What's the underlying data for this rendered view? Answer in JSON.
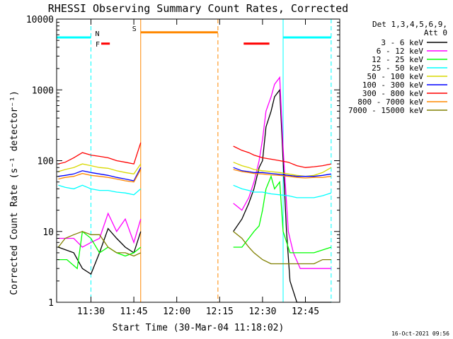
{
  "chart_data": {
    "type": "line",
    "title": "RHESSI Observing Summary Count Rates, Corrected",
    "xlabel": "Start Time (30-Mar-04 11:18:02)",
    "ylabel": "Corrected Count Rate (s⁻¹ detector⁻¹)",
    "ylog": true,
    "ylim": [
      1,
      10000
    ],
    "xlim_min": [
      11.3,
      12.95
    ],
    "x_ticks": [
      {
        "value": 11.5,
        "label": "11:30"
      },
      {
        "value": 11.75,
        "label": "11:45"
      },
      {
        "value": 12.0,
        "label": "12:00"
      },
      {
        "value": 12.25,
        "label": "12:15"
      },
      {
        "value": 12.5,
        "label": "12:30"
      },
      {
        "value": 12.75,
        "label": "12:45"
      }
    ],
    "y_ticks": [
      {
        "value": 1,
        "label": "1"
      },
      {
        "value": 10,
        "label": "10"
      },
      {
        "value": 100,
        "label": "100"
      },
      {
        "value": 1000,
        "label": "1000"
      },
      {
        "value": 10000,
        "label": "10000"
      }
    ],
    "legend": {
      "header": [
        "Det 1,3,4,5,6,9,",
        "Att 0"
      ],
      "placement": "right",
      "entries": [
        {
          "label": "3 - 6 keV",
          "color": "#000000"
        },
        {
          "label": "6 - 12 keV",
          "color": "#ff00ff"
        },
        {
          "label": "12 - 25 keV",
          "color": "#00ff00"
        },
        {
          "label": "25 - 50 keV",
          "color": "#00ffff"
        },
        {
          "label": "50 - 100 keV",
          "color": "#d8d800"
        },
        {
          "label": "100 - 300 keV",
          "color": "#0000ff"
        },
        {
          "label": "300 - 800 keV",
          "color": "#ff0000"
        },
        {
          "label": "800 - 7000 keV",
          "color": "#ff8800"
        },
        {
          "label": "7000 - 15000 keV",
          "color": "#808000"
        }
      ]
    },
    "series": [
      {
        "name": "3 - 6 keV",
        "color": "#000000",
        "segments": [
          [
            [
              11.31,
              6
            ],
            [
              11.4,
              5
            ],
            [
              11.45,
              3
            ],
            [
              11.5,
              2.5
            ],
            [
              11.55,
              5
            ],
            [
              11.6,
              11
            ],
            [
              11.65,
              8
            ],
            [
              11.7,
              6
            ],
            [
              11.75,
              5
            ],
            [
              11.79,
              10
            ]
          ],
          [
            [
              12.33,
              10
            ],
            [
              12.38,
              15
            ],
            [
              12.42,
              25
            ],
            [
              12.45,
              40
            ],
            [
              12.48,
              80
            ],
            [
              12.5,
              100
            ],
            [
              12.52,
              300
            ],
            [
              12.55,
              500
            ],
            [
              12.57,
              800
            ],
            [
              12.6,
              1000
            ],
            [
              12.62,
              100
            ],
            [
              12.64,
              10
            ],
            [
              12.66,
              2
            ],
            [
              12.7,
              1
            ],
            [
              12.9,
              1
            ]
          ]
        ]
      },
      {
        "name": "6 - 12 keV",
        "color": "#ff00ff",
        "segments": [
          [
            [
              11.31,
              8
            ],
            [
              11.4,
              8
            ],
            [
              11.45,
              6
            ],
            [
              11.5,
              7
            ],
            [
              11.55,
              8
            ],
            [
              11.6,
              18
            ],
            [
              11.65,
              10
            ],
            [
              11.7,
              15
            ],
            [
              11.75,
              7
            ],
            [
              11.79,
              15
            ]
          ],
          [
            [
              12.33,
              25
            ],
            [
              12.38,
              20
            ],
            [
              12.42,
              30
            ],
            [
              12.45,
              50
            ],
            [
              12.48,
              100
            ],
            [
              12.5,
              200
            ],
            [
              12.52,
              500
            ],
            [
              12.55,
              800
            ],
            [
              12.57,
              1200
            ],
            [
              12.6,
              1500
            ],
            [
              12.62,
              150
            ],
            [
              12.65,
              10
            ],
            [
              12.68,
              5
            ],
            [
              12.72,
              3
            ],
            [
              12.9,
              3
            ]
          ]
        ]
      },
      {
        "name": "12 - 25 keV",
        "color": "#00ff00",
        "segments": [
          [
            [
              11.31,
              4
            ],
            [
              11.36,
              4
            ],
            [
              11.42,
              3
            ],
            [
              11.45,
              10
            ],
            [
              11.5,
              8
            ],
            [
              11.55,
              5
            ],
            [
              11.6,
              6
            ],
            [
              11.65,
              5
            ],
            [
              11.7,
              4.5
            ],
            [
              11.75,
              5
            ],
            [
              11.79,
              6
            ]
          ],
          [
            [
              12.33,
              6
            ],
            [
              12.38,
              6
            ],
            [
              12.42,
              8
            ],
            [
              12.45,
              10
            ],
            [
              12.48,
              12
            ],
            [
              12.5,
              20
            ],
            [
              12.52,
              40
            ],
            [
              12.55,
              60
            ],
            [
              12.57,
              40
            ],
            [
              12.6,
              50
            ],
            [
              12.62,
              10
            ],
            [
              12.66,
              5
            ],
            [
              12.72,
              5
            ],
            [
              12.8,
              5
            ],
            [
              12.9,
              6
            ]
          ]
        ]
      },
      {
        "name": "25 - 50 keV",
        "color": "#00ffff",
        "segments": [
          [
            [
              11.31,
              45
            ],
            [
              11.35,
              42
            ],
            [
              11.4,
              40
            ],
            [
              11.45,
              45
            ],
            [
              11.5,
              40
            ],
            [
              11.55,
              38
            ],
            [
              11.6,
              38
            ],
            [
              11.65,
              36
            ],
            [
              11.7,
              35
            ],
            [
              11.75,
              33
            ],
            [
              11.79,
              40
            ]
          ],
          [
            [
              12.33,
              45
            ],
            [
              12.38,
              40
            ],
            [
              12.42,
              38
            ],
            [
              12.45,
              36
            ],
            [
              12.5,
              36
            ],
            [
              12.55,
              34
            ],
            [
              12.6,
              33
            ],
            [
              12.65,
              32
            ],
            [
              12.7,
              30
            ],
            [
              12.75,
              30
            ],
            [
              12.8,
              30
            ],
            [
              12.85,
              32
            ],
            [
              12.9,
              35
            ]
          ]
        ]
      },
      {
        "name": "50 - 100 keV",
        "color": "#d8d800",
        "segments": [
          [
            [
              11.31,
              70
            ],
            [
              11.35,
              75
            ],
            [
              11.4,
              80
            ],
            [
              11.45,
              90
            ],
            [
              11.5,
              85
            ],
            [
              11.55,
              80
            ],
            [
              11.6,
              78
            ],
            [
              11.65,
              72
            ],
            [
              11.7,
              68
            ],
            [
              11.75,
              65
            ],
            [
              11.79,
              90
            ]
          ],
          [
            [
              12.33,
              95
            ],
            [
              12.38,
              85
            ],
            [
              12.42,
              80
            ],
            [
              12.45,
              75
            ],
            [
              12.5,
              72
            ],
            [
              12.55,
              70
            ],
            [
              12.6,
              68
            ],
            [
              12.65,
              65
            ],
            [
              12.7,
              62
            ],
            [
              12.75,
              60
            ],
            [
              12.8,
              62
            ],
            [
              12.85,
              68
            ],
            [
              12.9,
              80
            ]
          ]
        ]
      },
      {
        "name": "100 - 300 keV",
        "color": "#0000ff",
        "segments": [
          [
            [
              11.31,
              60
            ],
            [
              11.35,
              62
            ],
            [
              11.4,
              65
            ],
            [
              11.45,
              72
            ],
            [
              11.5,
              68
            ],
            [
              11.55,
              65
            ],
            [
              11.6,
              62
            ],
            [
              11.65,
              58
            ],
            [
              11.7,
              55
            ],
            [
              11.75,
              52
            ],
            [
              11.79,
              80
            ]
          ],
          [
            [
              12.33,
              80
            ],
            [
              12.38,
              72
            ],
            [
              12.42,
              70
            ],
            [
              12.45,
              68
            ],
            [
              12.5,
              68
            ],
            [
              12.55,
              66
            ],
            [
              12.6,
              64
            ],
            [
              12.65,
              62
            ],
            [
              12.7,
              60
            ],
            [
              12.75,
              60
            ],
            [
              12.8,
              60
            ],
            [
              12.85,
              62
            ],
            [
              12.9,
              65
            ]
          ]
        ]
      },
      {
        "name": "300 - 800 keV",
        "color": "#ff0000",
        "segments": [
          [
            [
              11.31,
              90
            ],
            [
              11.35,
              95
            ],
            [
              11.4,
              110
            ],
            [
              11.45,
              130
            ],
            [
              11.5,
              120
            ],
            [
              11.55,
              115
            ],
            [
              11.6,
              110
            ],
            [
              11.65,
              100
            ],
            [
              11.7,
              95
            ],
            [
              11.75,
              90
            ],
            [
              11.79,
              180
            ]
          ],
          [
            [
              12.33,
              160
            ],
            [
              12.38,
              140
            ],
            [
              12.42,
              130
            ],
            [
              12.45,
              120
            ],
            [
              12.5,
              110
            ],
            [
              12.55,
              105
            ],
            [
              12.6,
              100
            ],
            [
              12.65,
              95
            ],
            [
              12.7,
              85
            ],
            [
              12.75,
              80
            ],
            [
              12.8,
              82
            ],
            [
              12.85,
              85
            ],
            [
              12.9,
              90
            ]
          ]
        ]
      },
      {
        "name": "800 - 7000 keV",
        "color": "#ff8800",
        "segments": [
          [
            [
              11.31,
              55
            ],
            [
              11.35,
              58
            ],
            [
              11.4,
              60
            ],
            [
              11.45,
              66
            ],
            [
              11.5,
              62
            ],
            [
              11.55,
              60
            ],
            [
              11.6,
              58
            ],
            [
              11.65,
              55
            ],
            [
              11.7,
              52
            ],
            [
              11.75,
              50
            ],
            [
              11.79,
              75
            ]
          ],
          [
            [
              12.33,
              75
            ],
            [
              12.38,
              70
            ],
            [
              12.42,
              68
            ],
            [
              12.45,
              66
            ],
            [
              12.5,
              65
            ],
            [
              12.55,
              63
            ],
            [
              12.6,
              62
            ],
            [
              12.65,
              60
            ],
            [
              12.7,
              58
            ],
            [
              12.75,
              57
            ],
            [
              12.8,
              58
            ],
            [
              12.85,
              58
            ],
            [
              12.9,
              60
            ]
          ]
        ]
      },
      {
        "name": "7000 - 15000 keV",
        "color": "#808000",
        "segments": [
          [
            [
              11.31,
              6
            ],
            [
              11.35,
              8
            ],
            [
              11.4,
              9
            ],
            [
              11.45,
              10
            ],
            [
              11.5,
              9
            ],
            [
              11.55,
              9
            ],
            [
              11.6,
              6
            ],
            [
              11.65,
              5
            ],
            [
              11.7,
              5
            ],
            [
              11.75,
              4.5
            ],
            [
              11.79,
              5
            ]
          ],
          [
            [
              12.33,
              10
            ],
            [
              12.38,
              8
            ],
            [
              12.42,
              6
            ],
            [
              12.45,
              5
            ],
            [
              12.5,
              4
            ],
            [
              12.55,
              3.5
            ],
            [
              12.6,
              3.5
            ],
            [
              12.65,
              3.5
            ],
            [
              12.7,
              3.5
            ],
            [
              12.75,
              3.5
            ],
            [
              12.8,
              3.5
            ],
            [
              12.85,
              4
            ],
            [
              12.9,
              4
            ]
          ]
        ]
      }
    ],
    "bars": [
      {
        "name": "N",
        "label": "N",
        "color": "#00ffff",
        "level": 5500,
        "segments": [
          [
            11.3,
            11.5
          ],
          [
            12.62,
            12.9
          ]
        ]
      },
      {
        "name": "F",
        "label": "F",
        "color": "#ff0000",
        "level": 4500,
        "segments": [
          [
            11.56,
            11.61
          ],
          [
            12.39,
            12.54
          ]
        ]
      },
      {
        "name": "S",
        "label": "S",
        "color": "#ff8800",
        "level": 6500,
        "segments": [
          [
            11.79,
            12.24
          ]
        ]
      }
    ],
    "vlines": [
      {
        "x": 11.3,
        "color": "#00ffff",
        "style": "solid"
      },
      {
        "x": 11.5,
        "color": "#00ffff",
        "style": "dashed"
      },
      {
        "x": 11.79,
        "color": "#ff8800",
        "style": "solid"
      },
      {
        "x": 12.24,
        "color": "#ff8800",
        "style": "dashed"
      },
      {
        "x": 12.62,
        "color": "#00ffff",
        "style": "solid"
      },
      {
        "x": 12.9,
        "color": "#00ffff",
        "style": "dashed"
      }
    ]
  },
  "footer": {
    "timestamp": "16-Oct-2021 09:56"
  }
}
